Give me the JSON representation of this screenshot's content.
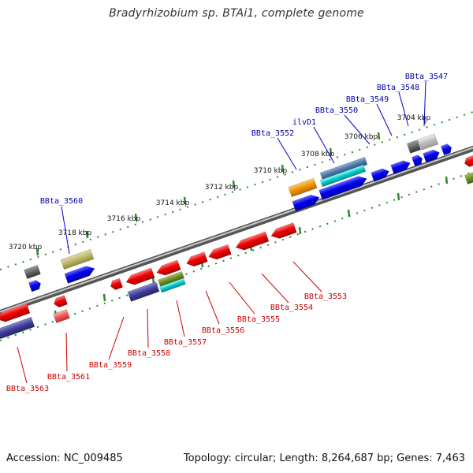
{
  "title": "Bradyrhizobium sp. BTAi1, complete genome",
  "footer": {
    "accession": "Accession: NC_009485",
    "summary": "Topology: circular; Length: 8,264,687 bp; Genes: 7,463"
  },
  "ticks": [
    "3704 kbp",
    "3706 kbp",
    "3708 kbp",
    "3710 kbp",
    "3712 kbp",
    "3714 kbp",
    "3716 kbp",
    "3718 kbp",
    "3720 kbp"
  ],
  "top_labels": [
    "BBta_3547",
    "BBta_3548",
    "BBta_3549",
    "BBta_3550",
    "ilvD1",
    "BBta_3552",
    "BBta_3560"
  ],
  "bottom_labels": [
    "BBta_3553",
    "BBta_3554",
    "BBta_3555",
    "BBta_3556",
    "BBta_3557",
    "BBta_3558",
    "BBta_3559",
    "BBta_3561",
    "BBta_3563"
  ],
  "colors": {
    "forward": "#0000ee",
    "reverse": "#ee0000",
    "label_forward": "#0000aa",
    "label_reverse": "#cc0000",
    "backbone": "#808080",
    "tick_mark": "#2e8b2e"
  }
}
